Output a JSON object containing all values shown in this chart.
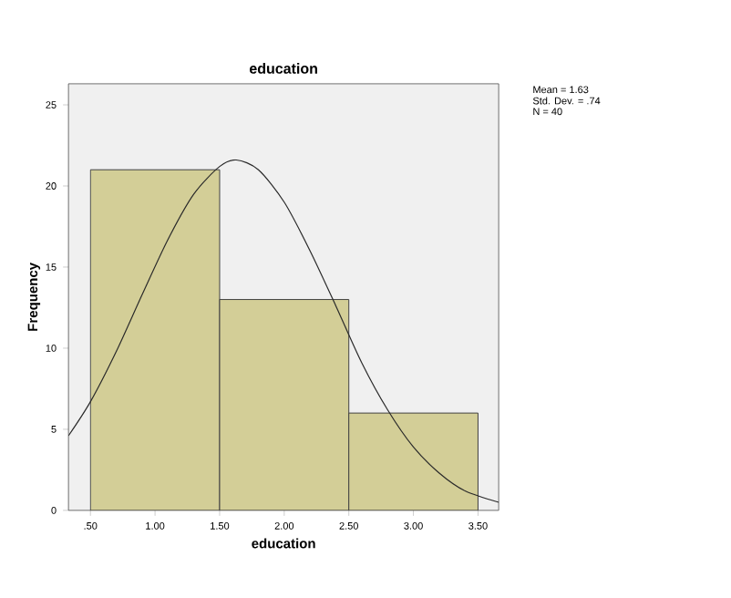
{
  "chart_data": {
    "type": "histogram",
    "title": "education",
    "xlabel": "education",
    "ylabel": "Frequency",
    "bins": [
      0.5,
      1.5,
      2.5,
      3.5
    ],
    "values": [
      21,
      13,
      6
    ],
    "color": "#d3ce97",
    "series": [
      {
        "type": "line",
        "color": "#2a2a2a",
        "x": [
          0.33,
          0.5,
          0.7,
          0.9,
          1.1,
          1.3,
          1.5,
          1.63,
          1.8,
          2.0,
          2.2,
          2.4,
          2.6,
          2.8,
          3.0,
          3.2,
          3.4,
          3.66
        ],
        "values": [
          4.6,
          6.7,
          9.8,
          13.3,
          16.7,
          19.5,
          21.2,
          21.6,
          21.0,
          19.0,
          16.0,
          12.6,
          9.1,
          6.2,
          3.9,
          2.3,
          1.2,
          0.5
        ]
      }
    ],
    "xlim": [
      0.33,
      3.66
    ],
    "ylim": [
      0,
      26.3
    ],
    "xticks": [
      {
        "value": 0.5,
        "label": ".50"
      },
      {
        "value": 1.0,
        "label": "1.00"
      },
      {
        "value": 1.5,
        "label": "1.50"
      },
      {
        "value": 2.0,
        "label": "2.00"
      },
      {
        "value": 2.5,
        "label": "2.50"
      },
      {
        "value": 3.0,
        "label": "3.00"
      },
      {
        "value": 3.5,
        "label": "3.50"
      }
    ],
    "yticks": [
      0,
      5,
      10,
      15,
      20,
      25
    ],
    "annotations": [
      "Mean = 1.63",
      "Std. Dev. = .74",
      "N = 40"
    ]
  }
}
